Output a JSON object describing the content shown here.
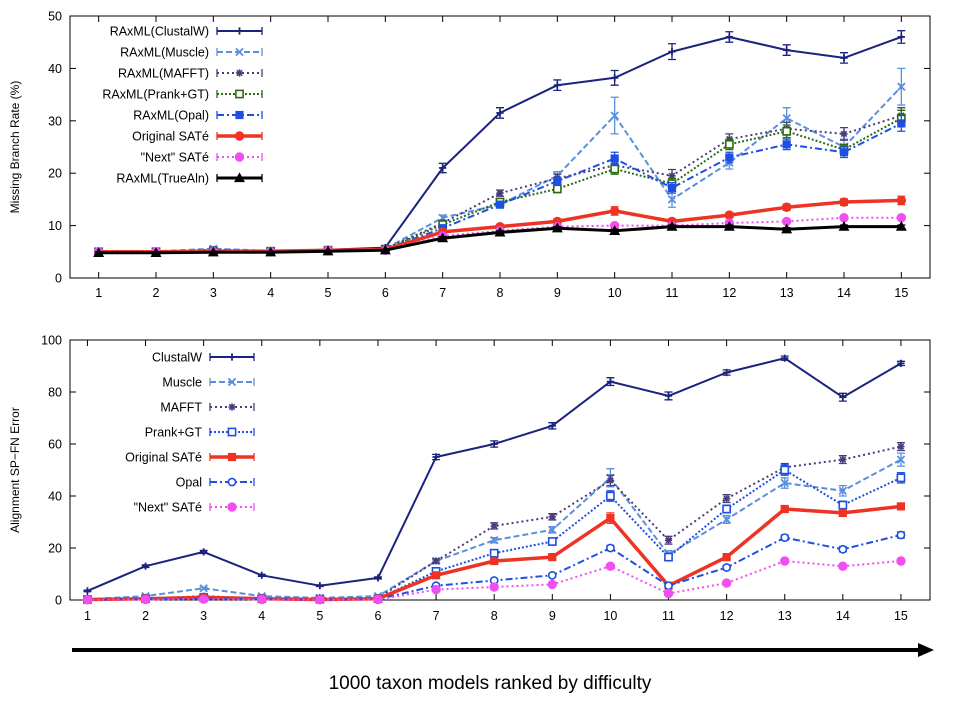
{
  "caption": "1000 taxon models ranked by difficulty",
  "chart_data": [
    {
      "type": "line",
      "title": "",
      "xlabel": "",
      "ylabel": "Missing Branch Rate (%)",
      "ylim": [
        0,
        50
      ],
      "yticks": [
        0,
        10,
        20,
        30,
        40,
        50
      ],
      "xlim": [
        0.5,
        15.5
      ],
      "x": [
        1,
        2,
        3,
        4,
        5,
        6,
        7,
        8,
        9,
        10,
        11,
        12,
        13,
        14,
        15
      ],
      "legend_position": "top-left",
      "grid": false,
      "series": [
        {
          "name": "RAxML(ClustalW)",
          "color": "#1a237e",
          "dash": "",
          "marker": "plus",
          "width": 2,
          "values": [
            5.0,
            5.0,
            5.2,
            5.1,
            5.4,
            5.8,
            21.0,
            31.5,
            36.8,
            38.2,
            43.2,
            46.0,
            43.5,
            42.0,
            46.0
          ],
          "errors": [
            0.3,
            0.3,
            0.3,
            0.3,
            0.3,
            0.3,
            0.9,
            1.0,
            1.0,
            1.4,
            1.5,
            1.0,
            1.0,
            1.0,
            1.2
          ]
        },
        {
          "name": "RAxML(Muscle)",
          "color": "#5b8fdc",
          "dash": "6,3",
          "marker": "x",
          "width": 2,
          "values": [
            5.0,
            5.1,
            5.6,
            5.2,
            5.3,
            5.6,
            11.5,
            14.0,
            19.5,
            31.0,
            15.0,
            22.0,
            30.5,
            25.0,
            36.5
          ],
          "errors": [
            0.2,
            0.2,
            0.3,
            0.2,
            0.2,
            0.3,
            0.5,
            0.5,
            0.8,
            3.5,
            1.5,
            1.2,
            2.0,
            1.5,
            3.5
          ]
        },
        {
          "name": "RAxML(MAFFT)",
          "color": "#4a3c7a",
          "dash": "2,3",
          "marker": "star",
          "width": 2,
          "values": [
            5.0,
            5.0,
            5.4,
            5.1,
            5.3,
            5.6,
            10.5,
            16.2,
            19.0,
            21.5,
            19.5,
            26.5,
            28.5,
            27.5,
            31.0
          ],
          "errors": [
            0.2,
            0.2,
            0.3,
            0.2,
            0.2,
            0.3,
            0.5,
            0.6,
            0.8,
            1.0,
            1.2,
            1.0,
            1.2,
            1.2,
            1.5
          ]
        },
        {
          "name": "RAxML(Prank+GT)",
          "color": "#2a6b12",
          "dash": "2,2",
          "marker": "square",
          "width": 2,
          "values": [
            5.0,
            5.0,
            5.2,
            5.1,
            5.3,
            5.5,
            10.2,
            14.5,
            17.0,
            20.8,
            18.0,
            25.5,
            28.0,
            24.5,
            30.5
          ],
          "errors": [
            0.2,
            0.2,
            0.3,
            0.2,
            0.2,
            0.3,
            0.5,
            0.6,
            0.7,
            1.0,
            1.0,
            1.0,
            1.2,
            1.0,
            1.5
          ]
        },
        {
          "name": "RAxML(Opal)",
          "color": "#1e4fe0",
          "dash": "7,3,2,3",
          "marker": "filled-square",
          "width": 2,
          "values": [
            5.0,
            5.0,
            5.2,
            5.1,
            5.3,
            5.5,
            9.5,
            14.0,
            18.5,
            22.8,
            17.2,
            23.0,
            25.5,
            24.0,
            29.5
          ],
          "errors": [
            0.2,
            0.2,
            0.3,
            0.2,
            0.2,
            0.3,
            0.5,
            0.6,
            0.7,
            1.2,
            1.0,
            1.0,
            1.0,
            1.0,
            1.5
          ]
        },
        {
          "name": "Original SATé",
          "color": "#ee3324",
          "dash": "",
          "marker": "filled-circle",
          "width": 3.5,
          "values": [
            5.0,
            5.0,
            5.1,
            5.1,
            5.3,
            5.4,
            8.8,
            9.8,
            10.8,
            12.8,
            10.8,
            12.0,
            13.5,
            14.5,
            14.8
          ],
          "errors": [
            0.2,
            0.2,
            0.2,
            0.2,
            0.2,
            0.2,
            0.4,
            0.4,
            0.5,
            0.8,
            0.5,
            0.5,
            0.6,
            0.6,
            0.8
          ]
        },
        {
          "name": "\"Next\" SATé",
          "color": "#f04ef0",
          "dash": "2,3",
          "marker": "filled-circle",
          "width": 2,
          "values": [
            5.0,
            5.0,
            5.0,
            5.0,
            5.2,
            5.3,
            8.0,
            9.0,
            9.8,
            10.0,
            10.0,
            10.5,
            10.8,
            11.5,
            11.5
          ],
          "errors": [
            0.2,
            0.2,
            0.2,
            0.2,
            0.2,
            0.2,
            0.3,
            0.3,
            0.4,
            0.4,
            0.4,
            0.4,
            0.4,
            0.4,
            0.4
          ]
        },
        {
          "name": "RAxML(TrueAln)",
          "color": "#000000",
          "dash": "",
          "marker": "filled-triangle",
          "width": 3,
          "values": [
            4.8,
            4.8,
            4.9,
            4.9,
            5.1,
            5.3,
            7.6,
            8.7,
            9.5,
            9.0,
            9.8,
            9.8,
            9.3,
            9.8,
            9.8
          ],
          "errors": [
            0.2,
            0.2,
            0.2,
            0.2,
            0.2,
            0.2,
            0.3,
            0.3,
            0.3,
            0.3,
            0.3,
            0.3,
            0.3,
            0.3,
            0.3
          ]
        }
      ]
    },
    {
      "type": "line",
      "title": "",
      "xlabel": "",
      "ylabel": "Alignment SP−FN Error",
      "ylim": [
        0,
        100
      ],
      "yticks": [
        0,
        20,
        40,
        60,
        80,
        100
      ],
      "xlim": [
        0.7,
        15.5
      ],
      "x": [
        1,
        2,
        3,
        4,
        5,
        6,
        7,
        8,
        9,
        10,
        11,
        12,
        13,
        14,
        15
      ],
      "legend_position": "top-left",
      "grid": false,
      "series": [
        {
          "name": "ClustalW",
          "color": "#1a237e",
          "dash": "",
          "marker": "plus",
          "width": 2,
          "values": [
            3.5,
            13.0,
            18.5,
            9.5,
            5.5,
            8.5,
            55.0,
            60.0,
            67.0,
            84.0,
            78.5,
            87.5,
            93.0,
            78.0,
            91.0
          ],
          "errors": [
            0.3,
            0.5,
            0.6,
            0.4,
            0.3,
            0.4,
            1.0,
            1.2,
            1.2,
            1.5,
            1.5,
            1.0,
            0.8,
            1.5,
            0.8
          ]
        },
        {
          "name": "Muscle",
          "color": "#5b8fdc",
          "dash": "6,3",
          "marker": "x",
          "width": 2,
          "values": [
            0.3,
            1.5,
            4.5,
            1.5,
            0.8,
            1.5,
            15.0,
            23.0,
            27.0,
            47.0,
            17.5,
            31.0,
            45.0,
            42.0,
            54.0
          ],
          "errors": [
            0.2,
            0.2,
            0.4,
            0.2,
            0.2,
            0.2,
            0.8,
            1.0,
            1.2,
            3.5,
            1.5,
            1.5,
            2.0,
            2.0,
            2.5
          ]
        },
        {
          "name": "MAFFT",
          "color": "#4a3c7a",
          "dash": "2,3",
          "marker": "star",
          "width": 2,
          "values": [
            0.2,
            0.5,
            1.5,
            0.5,
            0.3,
            0.8,
            15.0,
            28.5,
            32.0,
            46.0,
            23.0,
            39.0,
            51.0,
            54.0,
            59.0
          ],
          "errors": [
            0.2,
            0.2,
            0.2,
            0.2,
            0.2,
            0.2,
            0.8,
            1.2,
            1.2,
            2.0,
            1.5,
            1.5,
            1.5,
            1.5,
            1.5
          ]
        },
        {
          "name": "Prank+GT",
          "color": "#1e4fe0",
          "dash": "2,2",
          "marker": "square",
          "width": 2,
          "values": [
            0.2,
            0.5,
            1.0,
            0.5,
            0.3,
            0.5,
            11.0,
            18.0,
            22.5,
            40.0,
            16.5,
            35.0,
            50.0,
            36.5,
            47.0
          ],
          "errors": [
            0.2,
            0.2,
            0.2,
            0.2,
            0.2,
            0.2,
            0.8,
            1.0,
            1.2,
            2.0,
            1.2,
            1.5,
            2.0,
            1.5,
            2.0
          ]
        },
        {
          "name": "Original SATé",
          "color": "#ee3324",
          "dash": "",
          "marker": "filled-square",
          "width": 3.5,
          "values": [
            0.2,
            0.5,
            1.0,
            0.5,
            0.2,
            0.5,
            9.5,
            15.0,
            16.5,
            31.5,
            5.5,
            16.5,
            35.0,
            33.5,
            36.0
          ],
          "errors": [
            0.2,
            0.2,
            0.2,
            0.2,
            0.2,
            0.2,
            0.6,
            0.8,
            1.0,
            2.0,
            0.6,
            1.0,
            1.2,
            1.2,
            1.2
          ]
        },
        {
          "name": "Opal",
          "color": "#1e4fe0",
          "dash": "7,3,2,3",
          "marker": "circle",
          "width": 2,
          "values": [
            0.2,
            0.3,
            0.5,
            0.3,
            0.2,
            0.3,
            5.5,
            7.5,
            9.5,
            20.0,
            5.5,
            12.5,
            24.0,
            19.5,
            25.0
          ],
          "errors": [
            0.2,
            0.2,
            0.2,
            0.2,
            0.2,
            0.2,
            0.5,
            0.5,
            0.6,
            1.0,
            0.5,
            0.8,
            1.0,
            1.0,
            1.2
          ]
        },
        {
          "name": "\"Next\" SATé",
          "color": "#f04ef0",
          "dash": "2,3",
          "marker": "filled-circle",
          "width": 2,
          "values": [
            0.1,
            0.2,
            0.3,
            0.2,
            0.1,
            0.2,
            4.0,
            5.0,
            6.0,
            13.0,
            2.5,
            6.5,
            15.0,
            13.0,
            15.0
          ],
          "errors": [
            0.1,
            0.1,
            0.1,
            0.1,
            0.1,
            0.1,
            0.4,
            0.4,
            0.5,
            0.8,
            0.3,
            0.5,
            0.8,
            0.8,
            0.8
          ]
        }
      ]
    }
  ]
}
